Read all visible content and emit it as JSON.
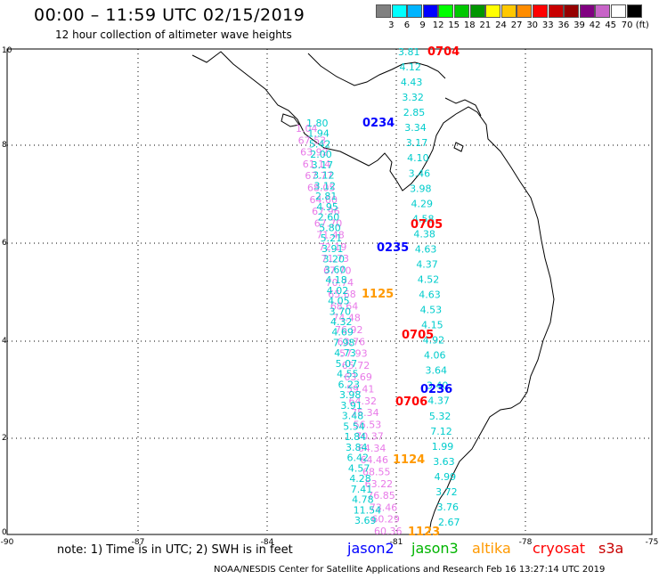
{
  "header": {
    "title": "00:00 – 11:59 UTC 02/15/2019",
    "subtitle": "12 hour collection of altimeter wave heights"
  },
  "legend": {
    "colors": [
      "#808080",
      "#00ffff",
      "#00b4ff",
      "#0000ff",
      "#00ff00",
      "#00c800",
      "#009600",
      "#ffff00",
      "#ffc800",
      "#ff8c00",
      "#ff0000",
      "#c80000",
      "#960000",
      "#800080",
      "#c864c8",
      "#ffffff",
      "#000000"
    ],
    "labels": [
      "3",
      "6",
      "9",
      "12",
      "15",
      "18",
      "21",
      "24",
      "27",
      "30",
      "33",
      "36",
      "39",
      "42",
      "45",
      "70 (ft)"
    ]
  },
  "axes": {
    "x_ticks": [
      "-90",
      "-87",
      "-84",
      "-81",
      "-78",
      "-75"
    ],
    "y_ticks": [
      "10",
      "8",
      "6",
      "4",
      "2",
      "0"
    ]
  },
  "track_labels": [
    {
      "text": "0704",
      "color": "#ff0000"
    },
    {
      "text": "0234",
      "color": "#0000ff"
    },
    {
      "text": "0705",
      "color": "#ff0000"
    },
    {
      "text": "0235",
      "color": "#0000ff"
    },
    {
      "text": "1125",
      "color": "#ff9900"
    },
    {
      "text": "0705",
      "color": "#ff0000"
    },
    {
      "text": "0236",
      "color": "#0000ff"
    },
    {
      "text": "0706",
      "color": "#ff0000"
    },
    {
      "text": "1124",
      "color": "#ff9900"
    },
    {
      "text": "1123",
      "color": "#ff9900"
    }
  ],
  "values": {
    "track_a": [
      "1.80",
      "1.94",
      "5.42",
      "2.00",
      "3.17",
      "3.12",
      "3.12",
      "2.81",
      "4.95",
      "2.60",
      "5.80",
      "5.21",
      "3.91",
      "3.20",
      "3.60",
      "4.18",
      "4.02",
      "4.05",
      "3.70",
      "4.32",
      "4.69",
      "7.98",
      "4.73",
      "5.07",
      "4.55",
      "6.23",
      "3.98",
      "3.91",
      "3.48",
      "5.54",
      "1.84",
      "3.84",
      "6.42",
      "4.57",
      "4.28",
      "7.41",
      "4.78",
      "11.54",
      "3.69"
    ],
    "track_b": [
      "3.81",
      "4.12",
      "4.43",
      "3.32",
      "2.85",
      "3.34",
      "3.17",
      "4.10",
      "3.46",
      "3.98",
      "4.29",
      "4.58",
      "4.38",
      "4.63",
      "4.37",
      "4.52",
      "4.63",
      "4.53",
      "4.15",
      "4.92",
      "4.06",
      "3.64",
      "3.40",
      "4.37",
      "5.32",
      "7.12",
      "1.99",
      "3.63",
      "4.99",
      "3.72",
      "3.76",
      "2.67"
    ],
    "track_pink": [
      "1.04",
      "67.53",
      "63.92",
      "61.14",
      "67.77",
      "68.05",
      "64.60",
      "67.96",
      "67.70",
      "71.48",
      "72.19",
      "71.73",
      "67.70",
      "70.74",
      "65.68",
      "68.64",
      "74.48",
      "76.92",
      "63.76",
      "57.93",
      "65.72",
      "63.69",
      "59.41",
      "64.32",
      "75.34",
      "56.53",
      "70.37",
      "64.34",
      "64.46",
      "68.55",
      "63.22",
      "76.85",
      "73.46",
      "60.29",
      "60.36"
    ]
  },
  "footer": {
    "note": "note:  1) Time is in UTC;  2) SWH is in feet",
    "sats": [
      {
        "name": "jason2",
        "color": "#0000ff"
      },
      {
        "name": "jason3",
        "color": "#00b400"
      },
      {
        "name": "altika",
        "color": "#ff9900"
      },
      {
        "name": "cryosat",
        "color": "#ff0000"
      },
      {
        "name": "s3a",
        "color": "#c80000"
      }
    ],
    "credit": "NOAA/NESDIS Center for Satellite Applications and Research    Feb 16 13:27:14 UTC 2019"
  }
}
